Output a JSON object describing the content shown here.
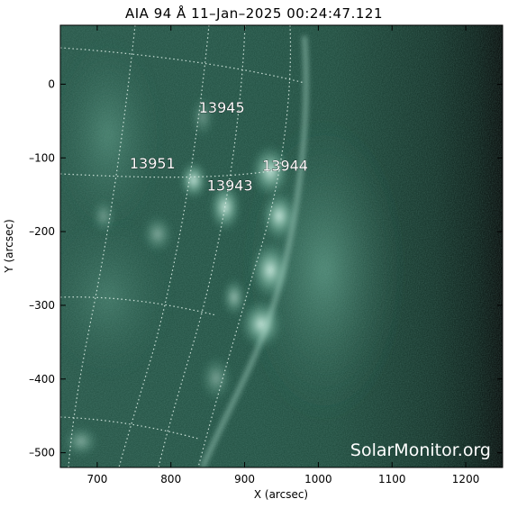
{
  "title": "AIA 94 Å 11–Jan–2025 00:24:47.121",
  "axes": {
    "xlabel": "X (arcsec)",
    "ylabel": "Y (arcsec)",
    "xlim": [
      650,
      1250
    ],
    "ylim": [
      -520,
      80
    ],
    "xticks": [
      {
        "value": 700,
        "label": "700"
      },
      {
        "value": 800,
        "label": "800"
      },
      {
        "value": 900,
        "label": "900"
      },
      {
        "value": 1000,
        "label": "1000"
      },
      {
        "value": 1100,
        "label": "1100"
      },
      {
        "value": 1200,
        "label": "1200"
      }
    ],
    "yticks": [
      {
        "value": 0,
        "label": "0"
      },
      {
        "value": -100,
        "label": "–100"
      },
      {
        "value": -200,
        "label": "–200"
      },
      {
        "value": -300,
        "label": "–300"
      },
      {
        "value": -400,
        "label": "–400"
      },
      {
        "value": -500,
        "label": "–500"
      }
    ]
  },
  "active_regions": [
    {
      "label": "13945",
      "x": 869,
      "y": -31
    },
    {
      "label": "13951",
      "x": 775,
      "y": -107
    },
    {
      "label": "13944",
      "x": 955,
      "y": -110
    },
    {
      "label": "13943",
      "x": 880,
      "y": -137
    }
  ],
  "watermark": "SolarMonitor.org",
  "colors": {
    "background": "#ffffff",
    "disk_dark": "#0f2a22",
    "disk_mid": "#2f6e5a",
    "bright": "#d8f0e6",
    "grid": "#d9ece4",
    "offlimb_edge": "#000000"
  }
}
